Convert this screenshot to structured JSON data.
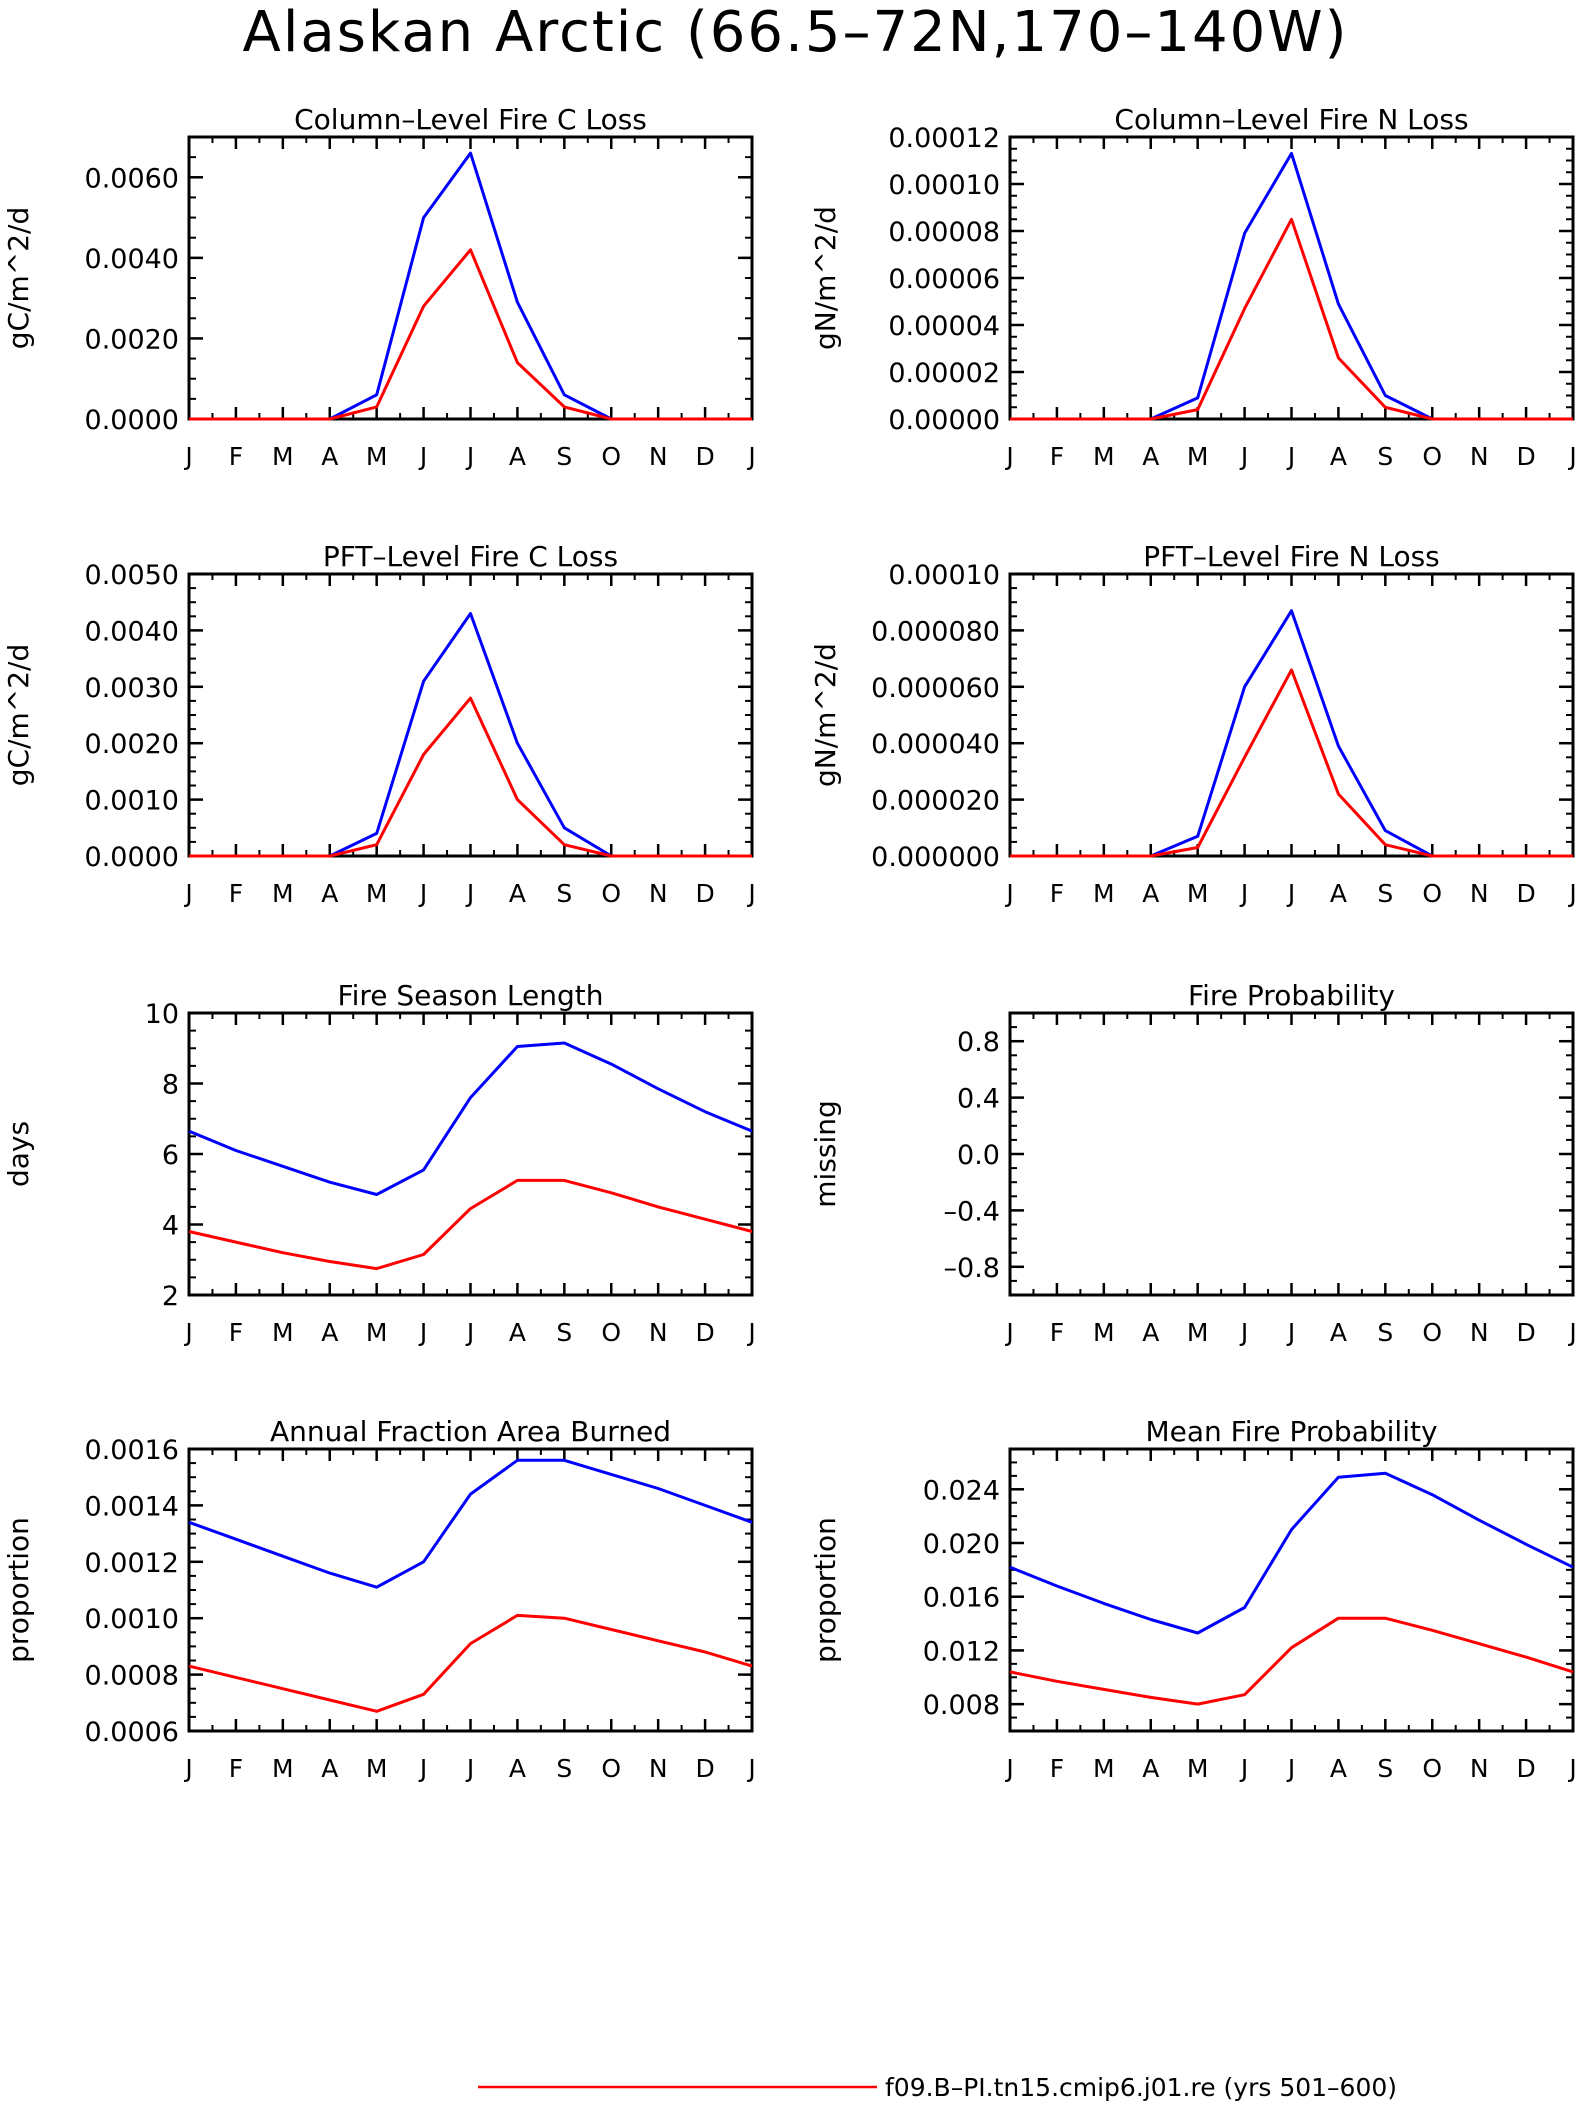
{
  "page": {
    "title": "Alaskan Arctic (66.5–72N,170–140W)",
    "legend": [
      {
        "label": "f09.B–PI.tn15.cmip6.j01.re (yrs 501–600)",
        "color": "#ff0000"
      }
    ]
  },
  "chart_data": [
    {
      "type": "line",
      "title": "Column–Level Fire C Loss",
      "ylabel": "gC/m^2/d",
      "categories": [
        "J",
        "F",
        "M",
        "A",
        "M",
        "J",
        "J",
        "A",
        "S",
        "O",
        "N",
        "D",
        "J"
      ],
      "ylim": [
        0,
        0.007
      ],
      "yticks": [
        "0.0000",
        "0.0020",
        "0.0040",
        "0.0060"
      ],
      "ytick_values": [
        0,
        0.002,
        0.004,
        0.006
      ],
      "series": [
        {
          "color": "#0000ff",
          "values": [
            0,
            0,
            0,
            0,
            0.0006,
            0.005,
            0.0066,
            0.0029,
            0.0006,
            0,
            0,
            0,
            0
          ]
        },
        {
          "color": "#ff0000",
          "values": [
            0,
            0,
            0,
            0,
            0.0003,
            0.0028,
            0.0042,
            0.0014,
            0.0003,
            0,
            0,
            0,
            0
          ]
        }
      ]
    },
    {
      "type": "line",
      "title": "Column–Level Fire N Loss",
      "ylabel": "gN/m^2/d",
      "categories": [
        "J",
        "F",
        "M",
        "A",
        "M",
        "J",
        "J",
        "A",
        "S",
        "O",
        "N",
        "D",
        "J"
      ],
      "ylim": [
        0,
        0.00012
      ],
      "yticks": [
        "0.00000",
        "0.00002",
        "0.00004",
        "0.00006",
        "0.00008",
        "0.00010",
        "0.00012"
      ],
      "ytick_values": [
        0,
        2e-05,
        4e-05,
        6e-05,
        8e-05,
        0.0001,
        0.00012
      ],
      "series": [
        {
          "color": "#0000ff",
          "values": [
            0,
            0,
            0,
            0,
            9e-06,
            7.9e-05,
            0.000113,
            4.9e-05,
            1e-05,
            0,
            0,
            0,
            0
          ]
        },
        {
          "color": "#ff0000",
          "values": [
            0,
            0,
            0,
            0,
            4e-06,
            4.7e-05,
            8.5e-05,
            2.6e-05,
            5e-06,
            0,
            0,
            0,
            0
          ]
        }
      ]
    },
    {
      "type": "line",
      "title": "PFT–Level Fire C Loss",
      "ylabel": "gC/m^2/d",
      "categories": [
        "J",
        "F",
        "M",
        "A",
        "M",
        "J",
        "J",
        "A",
        "S",
        "O",
        "N",
        "D",
        "J"
      ],
      "ylim": [
        0,
        0.005
      ],
      "yticks": [
        "0.0000",
        "0.0010",
        "0.0020",
        "0.0030",
        "0.0040",
        "0.0050"
      ],
      "ytick_values": [
        0,
        0.001,
        0.002,
        0.003,
        0.004,
        0.005
      ],
      "series": [
        {
          "color": "#0000ff",
          "values": [
            0,
            0,
            0,
            0,
            0.0004,
            0.0031,
            0.0043,
            0.002,
            0.0005,
            0,
            0,
            0,
            0
          ]
        },
        {
          "color": "#ff0000",
          "values": [
            0,
            0,
            0,
            0,
            0.0002,
            0.0018,
            0.0028,
            0.001,
            0.0002,
            0,
            0,
            0,
            0
          ]
        }
      ]
    },
    {
      "type": "line",
      "title": "PFT–Level Fire N Loss",
      "ylabel": "gN/m^2/d",
      "categories": [
        "J",
        "F",
        "M",
        "A",
        "M",
        "J",
        "J",
        "A",
        "S",
        "O",
        "N",
        "D",
        "J"
      ],
      "ylim": [
        0,
        0.0001
      ],
      "yticks": [
        "0.000000",
        "0.000020",
        "0.000040",
        "0.000060",
        "0.000080",
        "0.00010"
      ],
      "ytick_values": [
        0,
        2e-05,
        4e-05,
        6e-05,
        8e-05,
        0.0001
      ],
      "series": [
        {
          "color": "#0000ff",
          "values": [
            0,
            0,
            0,
            0,
            7e-06,
            6e-05,
            8.7e-05,
            3.9e-05,
            9e-06,
            0,
            0,
            0,
            0
          ]
        },
        {
          "color": "#ff0000",
          "values": [
            0,
            0,
            0,
            0,
            3e-06,
            3.5e-05,
            6.6e-05,
            2.2e-05,
            4e-06,
            0,
            0,
            0,
            0
          ]
        }
      ]
    },
    {
      "type": "line",
      "title": "Fire Season Length",
      "ylabel": "days",
      "categories": [
        "J",
        "F",
        "M",
        "A",
        "M",
        "J",
        "J",
        "A",
        "S",
        "O",
        "N",
        "D",
        "J"
      ],
      "ylim": [
        2,
        10
      ],
      "yticks": [
        "2",
        "4",
        "6",
        "8",
        "10"
      ],
      "ytick_values": [
        2,
        4,
        6,
        8,
        10
      ],
      "series": [
        {
          "color": "#0000ff",
          "values": [
            6.65,
            6.1,
            5.65,
            5.2,
            4.85,
            5.55,
            7.6,
            9.05,
            9.15,
            8.55,
            7.85,
            7.2,
            6.65
          ]
        },
        {
          "color": "#ff0000",
          "values": [
            3.8,
            3.5,
            3.2,
            2.95,
            2.75,
            3.15,
            4.45,
            5.25,
            5.25,
            4.9,
            4.5,
            4.15,
            3.8
          ]
        }
      ]
    },
    {
      "type": "line",
      "title": "Fire Probability",
      "ylabel": "missing",
      "categories": [
        "J",
        "F",
        "M",
        "A",
        "M",
        "J",
        "J",
        "A",
        "S",
        "O",
        "N",
        "D",
        "J"
      ],
      "ylim": [
        -1,
        1
      ],
      "yticks": [
        "–0.8",
        "–0.4",
        "0.0",
        "0.4",
        "0.8"
      ],
      "ytick_values": [
        -0.8,
        -0.4,
        0,
        0.4,
        0.8
      ],
      "series": []
    },
    {
      "type": "line",
      "title": "Annual Fraction Area Burned",
      "ylabel": "proportion",
      "categories": [
        "J",
        "F",
        "M",
        "A",
        "M",
        "J",
        "J",
        "A",
        "S",
        "O",
        "N",
        "D",
        "J"
      ],
      "ylim": [
        0.0006,
        0.0016
      ],
      "yticks": [
        "0.0006",
        "0.0008",
        "0.0010",
        "0.0012",
        "0.0014",
        "0.0016"
      ],
      "ytick_values": [
        0.0006,
        0.0008,
        0.001,
        0.0012,
        0.0014,
        0.0016
      ],
      "series": [
        {
          "color": "#0000ff",
          "values": [
            0.00134,
            0.00128,
            0.00122,
            0.00116,
            0.00111,
            0.0012,
            0.00144,
            0.00156,
            0.00156,
            0.00151,
            0.00146,
            0.0014,
            0.00134
          ]
        },
        {
          "color": "#ff0000",
          "values": [
            0.00083,
            0.00079,
            0.00075,
            0.00071,
            0.00067,
            0.00073,
            0.00091,
            0.00101,
            0.001,
            0.00096,
            0.00092,
            0.00088,
            0.00083
          ]
        }
      ]
    },
    {
      "type": "line",
      "title": "Mean Fire Probability",
      "ylabel": "proportion",
      "categories": [
        "J",
        "F",
        "M",
        "A",
        "M",
        "J",
        "J",
        "A",
        "S",
        "O",
        "N",
        "D",
        "J"
      ],
      "ylim": [
        0.006,
        0.027
      ],
      "yticks": [
        "0.008",
        "0.012",
        "0.016",
        "0.020",
        "0.024"
      ],
      "ytick_values": [
        0.008,
        0.012,
        0.016,
        0.02,
        0.024
      ],
      "series": [
        {
          "color": "#0000ff",
          "values": [
            0.0182,
            0.0168,
            0.0155,
            0.0143,
            0.0133,
            0.0152,
            0.021,
            0.0249,
            0.0252,
            0.0236,
            0.0217,
            0.0199,
            0.0182
          ]
        },
        {
          "color": "#ff0000",
          "values": [
            0.0104,
            0.0097,
            0.0091,
            0.0085,
            0.008,
            0.0087,
            0.0122,
            0.0144,
            0.0144,
            0.0135,
            0.0125,
            0.0115,
            0.0104
          ]
        }
      ]
    }
  ]
}
